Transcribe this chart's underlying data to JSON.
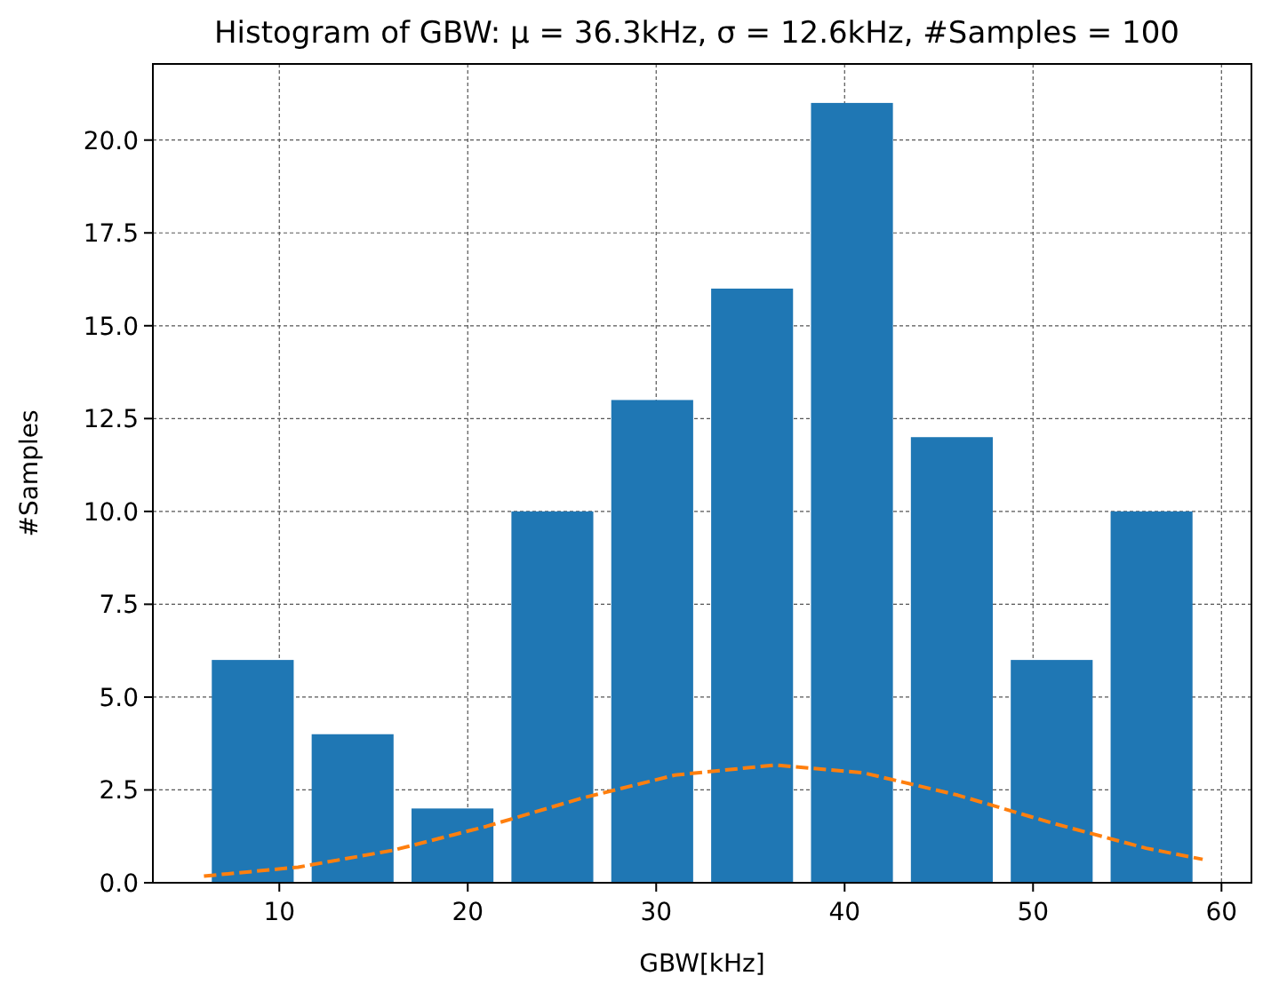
{
  "chart_data": {
    "type": "histogram",
    "title": "Histogram of GBW: μ = 36.3kHz, σ = 12.6kHz, #Samples = 100",
    "xlabel": "GBW[kHz]",
    "ylabel": "#Samples",
    "bins": [
      5.94,
      11.24,
      16.54,
      21.84,
      27.14,
      32.44,
      37.74,
      43.04,
      48.34,
      53.64,
      58.94
    ],
    "series": [
      {
        "color": "#1f77b4",
        "values": [
          6,
          4,
          2,
          10,
          13,
          16,
          21,
          12,
          6,
          10
        ]
      },
      {
        "type": "line",
        "color": "#ff7f0e",
        "line_style": "dashed",
        "marker": "none",
        "x": [
          6,
          11,
          16,
          21,
          26,
          31,
          36.3,
          41,
          46,
          51,
          56,
          59
        ],
        "values": [
          0.18,
          0.42,
          0.87,
          1.52,
          2.27,
          2.9,
          3.17,
          2.96,
          2.36,
          1.61,
          0.93,
          0.63
        ]
      }
    ],
    "xlim": [
      3.29,
      61.59
    ],
    "xticks": [
      10,
      20,
      30,
      40,
      50,
      60
    ],
    "ylim": [
      0,
      22.05
    ],
    "yticks": [
      {
        "value": 0,
        "label": "0.0"
      },
      {
        "value": 2.5,
        "label": "2.5"
      },
      {
        "value": 5,
        "label": "5.0"
      },
      {
        "value": 7.5,
        "label": "7.5"
      },
      {
        "value": 10,
        "label": "10.0"
      },
      {
        "value": 12.5,
        "label": "12.5"
      },
      {
        "value": 15,
        "label": "15.0"
      },
      {
        "value": 17.5,
        "label": "17.5"
      },
      {
        "value": 20,
        "label": "20.0"
      }
    ],
    "grid": true
  }
}
